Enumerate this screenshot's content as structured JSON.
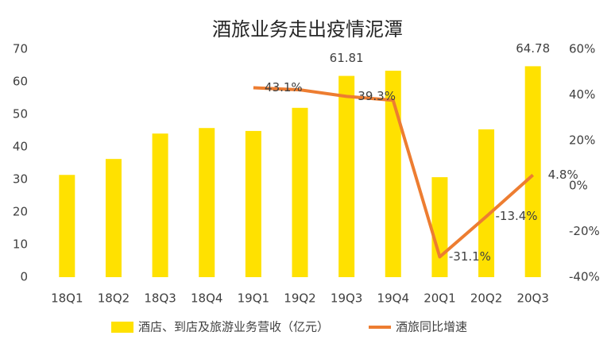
{
  "chart_data": {
    "type": "bar",
    "title": "酒旅业务走出疫情泥潭",
    "categories": [
      "18Q1",
      "18Q2",
      "18Q3",
      "18Q4",
      "19Q1",
      "19Q2",
      "19Q3",
      "19Q4",
      "20Q1",
      "20Q2",
      "20Q3"
    ],
    "series": [
      {
        "name": "酒店、到店及旅游业务营收（亿元）",
        "type": "bar",
        "color": "#FFE100",
        "values": [
          31.4,
          36.3,
          44.1,
          45.8,
          44.9,
          52.0,
          61.81,
          63.4,
          30.7,
          45.4,
          64.78
        ],
        "value_labels": [
          null,
          null,
          null,
          null,
          null,
          null,
          "61.81",
          null,
          null,
          null,
          "64.78"
        ]
      },
      {
        "name": "酒旅同比增速",
        "type": "line",
        "axis": "y2",
        "color": "#ED7D31",
        "values": [
          null,
          null,
          null,
          null,
          43.1,
          42.2,
          39.3,
          37.6,
          -31.1,
          -13.4,
          4.8
        ],
        "value_labels": [
          null,
          null,
          null,
          null,
          "43.1%",
          null,
          "39.3%",
          null,
          "-31.1%",
          "-13.4%",
          "4.8%"
        ]
      }
    ],
    "ylim": [
      0,
      70
    ],
    "yticks": [
      0,
      10,
      20,
      30,
      40,
      50,
      60,
      70
    ],
    "y2lim": [
      -40,
      60
    ],
    "y2ticks": [
      {
        "value": -40,
        "label": "-40%"
      },
      {
        "value": -20,
        "label": "-20%"
      },
      {
        "value": 0,
        "label": "0%"
      },
      {
        "value": 20,
        "label": "20%"
      },
      {
        "value": 40,
        "label": "40%"
      },
      {
        "value": 60,
        "label": "60%"
      }
    ],
    "legend": "bottom"
  }
}
